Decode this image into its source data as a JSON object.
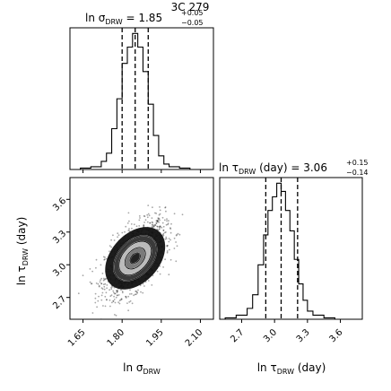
{
  "figure_title": "3C 279",
  "chart_data": [
    {
      "type": "histogram",
      "panel": "ln sigma_DRW marginal",
      "title": {
        "lhs": "ln σ",
        "lhs_sub": "DRW",
        "eq": " = 1.85",
        "plus": "+0.05",
        "minus": "−0.05"
      },
      "x_range": [
        1.6,
        2.15
      ],
      "x_ticks": [
        1.65,
        1.8,
        1.95,
        2.1
      ],
      "x_tick_labels": [
        "1.65",
        "1.80",
        "1.95",
        "2.10"
      ],
      "quantiles": [
        1.8,
        1.85,
        1.9
      ],
      "bin_edges": [
        1.6,
        1.64,
        1.68,
        1.72,
        1.74,
        1.76,
        1.78,
        1.8,
        1.82,
        1.84,
        1.86,
        1.88,
        1.9,
        1.92,
        1.94,
        1.96,
        1.98,
        2.02,
        2.06,
        2.15
      ],
      "counts": [
        0,
        1,
        2,
        6,
        12,
        30,
        52,
        78,
        90,
        100,
        90,
        72,
        48,
        25,
        10,
        4,
        2,
        1,
        0
      ]
    },
    {
      "type": "histogram",
      "panel": "ln tau_DRW marginal",
      "title": {
        "lhs": "ln τ",
        "lhs_sub": "DRW",
        "lhs_tail": " (day)",
        "eq": " = 3.06",
        "plus": "+0.15",
        "minus": "−0.14"
      },
      "x_range": [
        2.5,
        3.8
      ],
      "x_ticks": [
        2.7,
        3.0,
        3.3,
        3.6
      ],
      "x_tick_labels": [
        "2.7",
        "3.0",
        "3.3",
        "3.6"
      ],
      "quantiles": [
        2.92,
        3.06,
        3.21
      ],
      "bin_edges": [
        2.55,
        2.65,
        2.75,
        2.8,
        2.85,
        2.9,
        2.94,
        2.98,
        3.02,
        3.06,
        3.1,
        3.14,
        3.18,
        3.22,
        3.26,
        3.3,
        3.35,
        3.45,
        3.55,
        3.7
      ],
      "counts": [
        1,
        3,
        8,
        18,
        40,
        62,
        80,
        90,
        100,
        94,
        80,
        65,
        44,
        26,
        14,
        6,
        3,
        1,
        0
      ]
    },
    {
      "type": "heatmap",
      "panel": "2D joint posterior (corner)",
      "x_range": [
        1.6,
        2.15
      ],
      "y_range": [
        2.5,
        3.8
      ],
      "x_ticks": [
        1.65,
        1.8,
        1.95,
        2.1
      ],
      "x_tick_labels": [
        "1.65",
        "1.80",
        "1.95",
        "2.10"
      ],
      "y_ticks": [
        2.7,
        3.0,
        3.3,
        3.6
      ],
      "y_tick_labels": [
        "2.7",
        "3.0",
        "3.3",
        "3.6"
      ],
      "center": [
        1.85,
        3.06
      ],
      "contour_levels": [
        "0.5σ",
        "1σ",
        "1.5σ",
        "2σ"
      ],
      "xlabel": {
        "main": "ln σ",
        "sub": "DRW"
      },
      "ylabel": {
        "main": "ln τ",
        "sub": "DRW",
        "tail": " (day)"
      }
    }
  ],
  "x_labels": {
    "left": {
      "main": "ln σ",
      "sub": "DRW"
    },
    "right": {
      "main": "ln τ",
      "sub": "DRW",
      "tail": " (day)"
    }
  }
}
